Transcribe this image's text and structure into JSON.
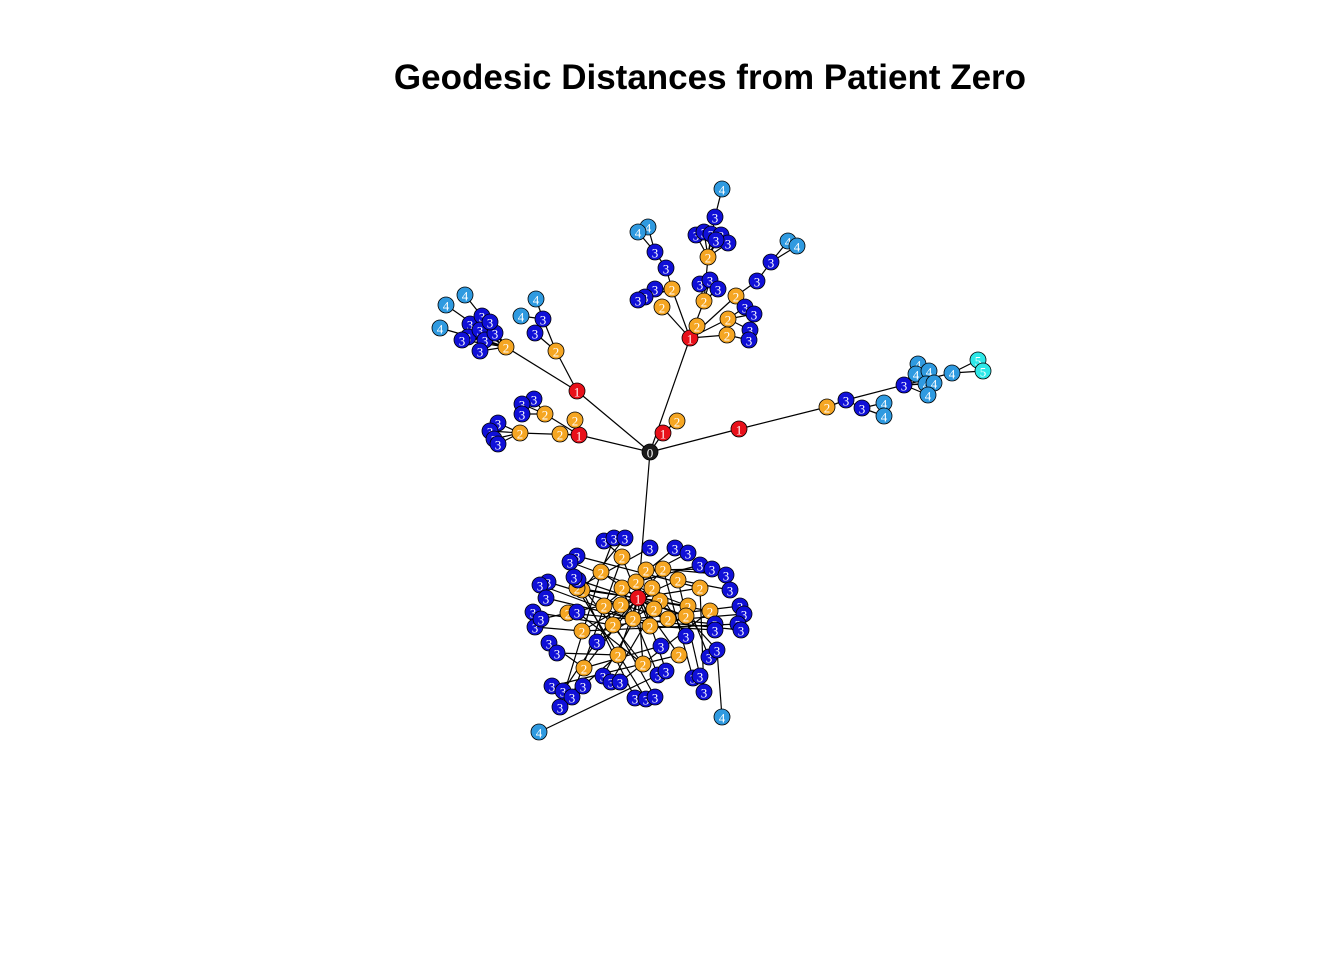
{
  "title": "Geodesic Distances from Patient Zero",
  "colors": {
    "0": "#1a1a1a",
    "1": "#e8101a",
    "2": "#f5a623",
    "3": "#1010d8",
    "4": "#2f9ae0",
    "5": "#2ee8e8"
  },
  "node_labels": [
    "0",
    "1",
    "2",
    "3",
    "4",
    "5"
  ]
}
